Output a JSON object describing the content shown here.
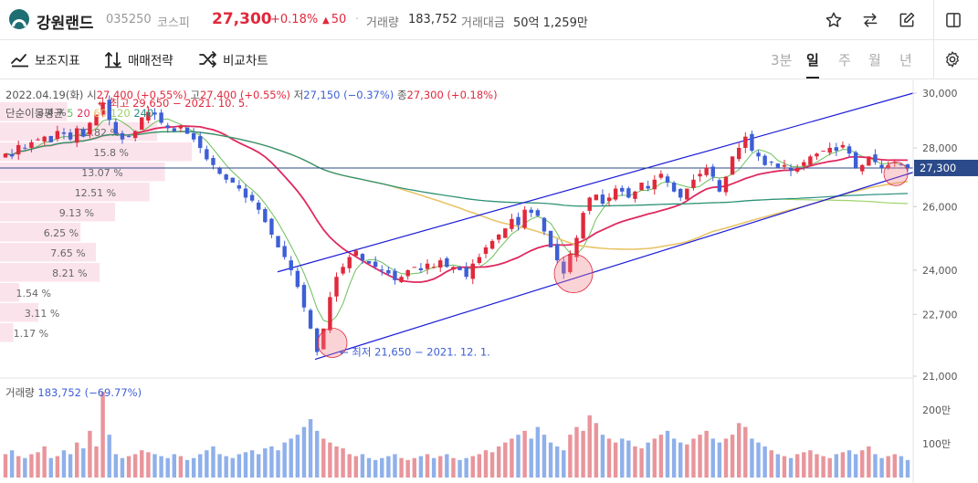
{
  "header": {
    "name": "강원랜드",
    "code": "035250",
    "market": "코스피",
    "price": "27,300",
    "change_pct": "+0.18%",
    "change_icon": "up-triangle",
    "change_amount": "50",
    "volume_label": "거래량",
    "volume": "183,752",
    "amount_label": "거래대금",
    "amount": "50억 1,259만",
    "icons": [
      "star-icon",
      "swap-icon",
      "edit-icon",
      "panel-icon"
    ]
  },
  "toolbar": {
    "indicator_label": "보조지표",
    "strategy_label": "매매전략",
    "compare_label": "비교차트",
    "periods": [
      "3분",
      "일",
      "주",
      "월",
      "년"
    ],
    "active_period": "일",
    "settings_icon": "gear-icon"
  },
  "chart_info": {
    "date": "2022.04.19(화)",
    "open_label": "시",
    "open": "27,400 (+0.55%)",
    "high_label": "고",
    "high": "27,400 (+0.55%)",
    "low_label": "저",
    "low": "27,150 (−0.37%)",
    "close_label": "종",
    "close": "27,300 (+0.18%)",
    "ma_label": "단순이동평균",
    "ma_periods": [
      "5",
      "20",
      "60",
      "120",
      "240"
    ],
    "volume_label": "거래량",
    "volume_value": "183,752 (−69.77%)"
  },
  "annotations": {
    "high": "최고 29,650 − 2021. 10. 5.",
    "low": "최저 21,650 − 2021. 12. 1."
  },
  "current_price_tag": "27,300",
  "colors": {
    "up": "#e0293c",
    "down": "#3d5fd6",
    "vol_up": "#e8959b",
    "vol_down": "#8fb0ea",
    "ma5": "#6cbf5a",
    "ma20": "#e0295f",
    "ma60": "#e8c468",
    "ma120": "#9ed36a",
    "ma240": "#2a8f7f",
    "trend": "#1b1bd9",
    "price_line": "#2b4a8a",
    "profile": "#fbe3ec"
  },
  "chart_data": {
    "type": "candlestick",
    "y_axis": {
      "ticks": [
        "30,000",
        "28,000",
        "26,000",
        "24,000",
        "22,700",
        "21,000"
      ],
      "scale": "log"
    },
    "volume_axis": {
      "ticks": [
        "200만",
        "100만"
      ]
    },
    "volume_profile": [
      "3.4 %",
      "12.82 %",
      "15.8 %",
      "13.07 %",
      "12.51 %",
      "9.13 %",
      "6.25 %",
      "7.65 %",
      "8.21 %",
      "1.54 %",
      "3.11 %",
      "1.17 %"
    ],
    "profile_widths": [
      0.35,
      0.82,
      1.0,
      0.86,
      0.78,
      0.6,
      0.42,
      0.5,
      0.52,
      0.1,
      0.2,
      0.07
    ],
    "closes": [
      27800,
      27700,
      28100,
      28000,
      28200,
      28300,
      28400,
      28200,
      28600,
      28500,
      28300,
      28700,
      28400,
      28900,
      29200,
      29650,
      29000,
      28500,
      28300,
      28400,
      28600,
      29100,
      29300,
      29200,
      28900,
      28700,
      28600,
      28800,
      28500,
      28300,
      28000,
      27600,
      27400,
      27100,
      26900,
      26800,
      26600,
      26300,
      26200,
      25900,
      25500,
      25100,
      24700,
      24400,
      24000,
      23500,
      22900,
      22300,
      21650,
      22300,
      23200,
      23800,
      24100,
      24400,
      24600,
      24300,
      24200,
      24100,
      24000,
      23900,
      23700,
      23800,
      24000,
      24100,
      24000,
      24200,
      24100,
      24300,
      24100,
      24100,
      24000,
      23800,
      24200,
      24400,
      24700,
      24900,
      25100,
      25300,
      25600,
      25400,
      25900,
      25800,
      25700,
      25200,
      24700,
      24300,
      23900,
      24500,
      25000,
      25800,
      26300,
      26400,
      26100,
      26300,
      26600,
      26500,
      26300,
      26500,
      26800,
      26600,
      26900,
      27100,
      26800,
      26500,
      26300,
      26600,
      26900,
      27100,
      27300,
      27000,
      26500,
      27000,
      27700,
      28000,
      28400,
      27900,
      27700,
      27400,
      27500,
      27300,
      27400,
      27200,
      27300,
      27500,
      27700,
      27800,
      27900,
      28000,
      27900,
      28100,
      27800,
      27300,
      27400,
      27700,
      27500,
      27300,
      27400,
      27500,
      27400,
      27300
    ],
    "volumes": [
      60,
      70,
      55,
      50,
      60,
      65,
      80,
      50,
      55,
      70,
      60,
      90,
      75,
      120,
      80,
      220,
      110,
      60,
      50,
      55,
      60,
      70,
      65,
      60,
      55,
      50,
      60,
      55,
      45,
      50,
      60,
      70,
      80,
      60,
      55,
      50,
      60,
      65,
      70,
      60,
      75,
      80,
      70,
      90,
      100,
      110,
      130,
      150,
      120,
      100,
      90,
      80,
      75,
      60,
      55,
      60,
      50,
      45,
      50,
      55,
      60,
      50,
      45,
      50,
      55,
      60,
      50,
      55,
      60,
      50,
      45,
      50,
      55,
      60,
      70,
      65,
      80,
      90,
      100,
      110,
      120,
      100,
      130,
      110,
      90,
      80,
      70,
      110,
      130,
      120,
      160,
      140,
      110,
      100,
      90,
      100,
      95,
      80,
      75,
      90,
      100,
      110,
      120,
      100,
      90,
      85,
      100,
      110,
      120,
      100,
      90,
      100,
      110,
      140,
      130,
      100,
      90,
      80,
      70,
      60,
      55,
      50,
      60,
      65,
      70,
      60,
      55,
      50,
      60,
      65,
      70,
      60,
      70,
      80,
      60,
      50,
      55,
      60,
      55,
      45
    ]
  }
}
